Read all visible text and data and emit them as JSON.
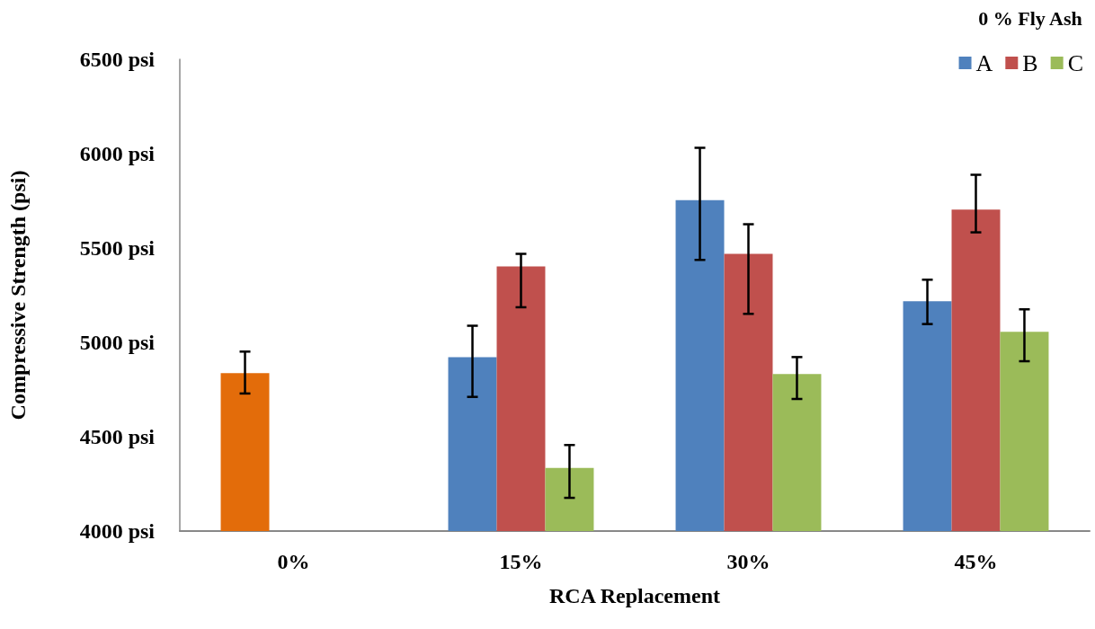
{
  "chart_data": {
    "type": "bar",
    "xlabel": "RCA Replacement",
    "ylabel": "Compressive Strength (psi)",
    "legend_title": "0 % Fly Ash",
    "legend": "top right",
    "grid": false,
    "categories": [
      "0%",
      "15%",
      "30%",
      "45%"
    ],
    "ylim": [
      4000,
      6500
    ],
    "yticks": [
      {
        "value": 4000,
        "label": "4000 psi"
      },
      {
        "value": 4500,
        "label": "4500 psi"
      },
      {
        "value": 5000,
        "label": "5000 psi"
      },
      {
        "value": 5500,
        "label": "5500 psi"
      },
      {
        "value": 6000,
        "label": "6000 psi"
      },
      {
        "value": 6500,
        "label": "6500 psi"
      }
    ],
    "series": [
      {
        "name": "A",
        "color": "#4f81bd",
        "colors": [
          "#e36c0a",
          "#4f81bd",
          "#4f81bd",
          "#4f81bd"
        ],
        "values": [
          4837,
          4922,
          5754,
          5218
        ],
        "errors": [
          [
            4729,
            4951
          ],
          [
            4711,
            5088
          ],
          [
            5437,
            6031
          ],
          [
            5097,
            5332
          ]
        ]
      },
      {
        "name": "B",
        "color": "#c0504d",
        "values": [
          4000,
          5402,
          5469,
          5703
        ],
        "errors": [
          null,
          [
            5186,
            5469
          ],
          [
            5151,
            5626
          ],
          [
            5583,
            5888
          ]
        ]
      },
      {
        "name": "C",
        "color": "#9bbb59",
        "values": [
          4000,
          4335,
          4832,
          5056
        ],
        "errors": [
          null,
          [
            4176,
            4456
          ],
          [
            4700,
            4922
          ],
          [
            4900,
            5175
          ]
        ]
      }
    ]
  }
}
